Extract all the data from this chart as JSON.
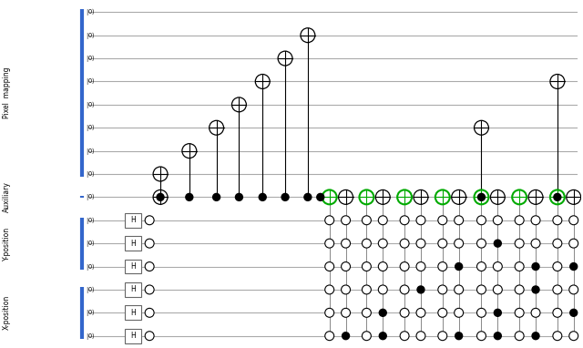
{
  "fig_width": 6.4,
  "fig_height": 3.82,
  "dpi": 100,
  "background": "#ffffff",
  "wire_color": "#aaaaaa",
  "line_color": "#000000",
  "blue_bar_color": "#3366cc",
  "green_circle_color": "#00aa00",
  "n_total_wires": 15,
  "label_pixel": "Pixel  mapping",
  "label_aux": "Auxiliary",
  "label_y": "Y-position",
  "label_x": "X-position"
}
